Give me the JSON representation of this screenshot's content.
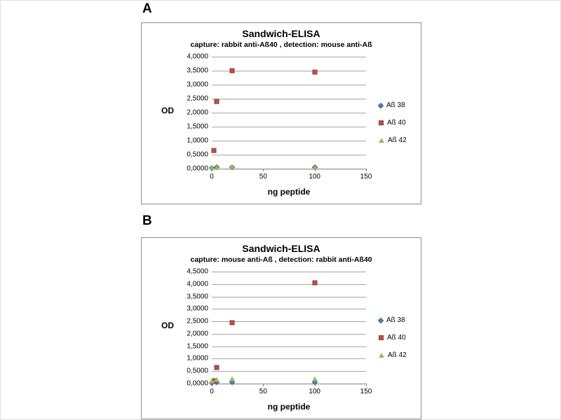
{
  "panels": [
    {
      "letter": "A"
    },
    {
      "letter": "B"
    }
  ],
  "chart_data": [
    {
      "type": "scatter",
      "title": "Sandwich-ELISA",
      "subtitle": "capture: rabbit anti-Aß40 , detection: mouse anti-Aß",
      "xlabel": "ng peptide",
      "ylabel": "OD",
      "xlim": [
        0,
        150
      ],
      "xticks": [
        0,
        50,
        100,
        150
      ],
      "ylim": [
        0,
        4.0
      ],
      "ytick_step": 0.5,
      "ytick_labels": [
        "0,0000",
        "0,5000",
        "1,0000",
        "1,5000",
        "2,0000",
        "2,5000",
        "3,0000",
        "3,5000",
        "4,0000"
      ],
      "grid": true,
      "legend_position": "right",
      "series": [
        {
          "name": "Aß 38",
          "marker": "diamond",
          "color": "#4f81bd",
          "points": [
            [
              0,
              0.03
            ],
            [
              5,
              0.04
            ],
            [
              20,
              0.05
            ],
            [
              100,
              0.04
            ]
          ]
        },
        {
          "name": "Aß 40",
          "marker": "square",
          "color": "#c0504d",
          "points": [
            [
              2,
              0.65
            ],
            [
              5,
              2.4
            ],
            [
              20,
              3.5
            ],
            [
              100,
              3.45
            ]
          ]
        },
        {
          "name": "Aß 42",
          "marker": "triangle",
          "color": "#9bbb59",
          "points": [
            [
              0,
              0.05
            ],
            [
              5,
              0.06
            ],
            [
              20,
              0.07
            ],
            [
              100,
              0.06
            ]
          ]
        }
      ]
    },
    {
      "type": "scatter",
      "title": "Sandwich-ELISA",
      "subtitle": "capture: mouse anti-Aß , detection: rabbit anti-Aß40",
      "xlabel": "ng peptide",
      "ylabel": "OD",
      "xlim": [
        0,
        150
      ],
      "xticks": [
        0,
        50,
        100,
        150
      ],
      "ylim": [
        0,
        4.5
      ],
      "ytick_step": 0.5,
      "ytick_labels": [
        "0,0000",
        "0,5000",
        "1,0000",
        "1,5000",
        "2,0000",
        "2,5000",
        "3,0000",
        "3,5000",
        "4,0000",
        "4,5000"
      ],
      "grid": true,
      "legend_position": "right",
      "series": [
        {
          "name": "Aß 38",
          "marker": "diamond",
          "color": "#4f81bd",
          "points": [
            [
              0,
              0.04
            ],
            [
              5,
              0.05
            ],
            [
              20,
              0.06
            ],
            [
              100,
              0.05
            ]
          ]
        },
        {
          "name": "Aß 40",
          "marker": "square",
          "color": "#c0504d",
          "points": [
            [
              2,
              0.12
            ],
            [
              5,
              0.65
            ],
            [
              20,
              2.45
            ],
            [
              100,
              4.05
            ]
          ]
        },
        {
          "name": "Aß 42",
          "marker": "triangle",
          "color": "#9bbb59",
          "points": [
            [
              0,
              0.12
            ],
            [
              5,
              0.18
            ],
            [
              20,
              0.2
            ],
            [
              100,
              0.2
            ]
          ]
        }
      ]
    }
  ]
}
